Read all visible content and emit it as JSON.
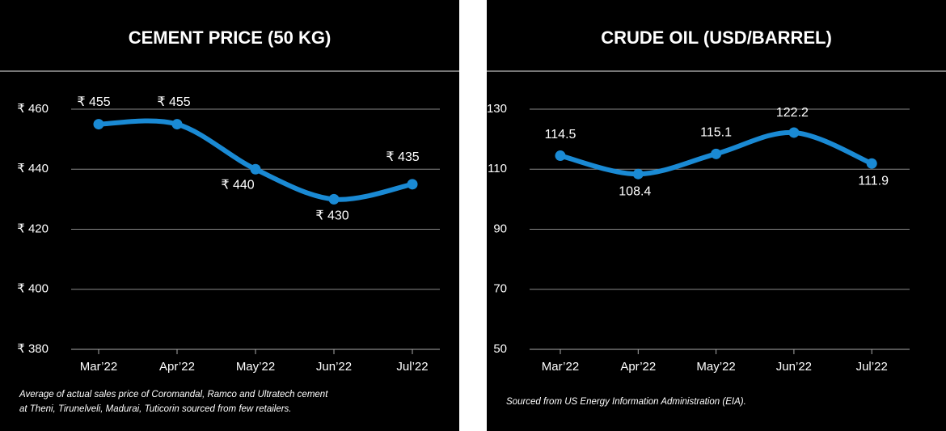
{
  "chart_data": [
    {
      "type": "line",
      "title": "CEMENT PRICE (50 KG)",
      "categories": [
        "Mar’22",
        "Apr’22",
        "May’22",
        "Jun’22",
        "Jul’22"
      ],
      "values": [
        455,
        455,
        440,
        430,
        435
      ],
      "value_labels": [
        "₹ 455",
        "₹ 455",
        "₹ 440",
        "₹ 430",
        "₹ 435"
      ],
      "color": "#1a8ad4",
      "ylim": [
        380,
        460
      ],
      "yticks": [
        {
          "value": 380,
          "label": "₹ 380"
        },
        {
          "value": 400,
          "label": "₹ 400"
        },
        {
          "value": 420,
          "label": "₹ 420"
        },
        {
          "value": 440,
          "label": "₹ 440"
        },
        {
          "value": 460,
          "label": "₹ 460"
        }
      ],
      "grid": true,
      "note": [
        "Average of actual sales price of Coromandal, Ramco and Ultratech cement",
        "at Theni, Tirunelveli, Madurai, Tuticorin sourced from few retailers."
      ]
    },
    {
      "type": "line",
      "title": "CRUDE OIL (USD/BARREL)",
      "categories": [
        "Mar’22",
        "Apr’22",
        "May’22",
        "Jun’22",
        "Jul’22"
      ],
      "values": [
        114.5,
        108.4,
        115.1,
        122.2,
        111.9
      ],
      "color": "#1a8ad4",
      "ylim": [
        50,
        130
      ],
      "yticks": [
        50,
        70,
        90,
        110,
        130
      ],
      "grid": true,
      "note": [
        "Sourced from US Energy Information Administration (EIA)."
      ]
    }
  ]
}
